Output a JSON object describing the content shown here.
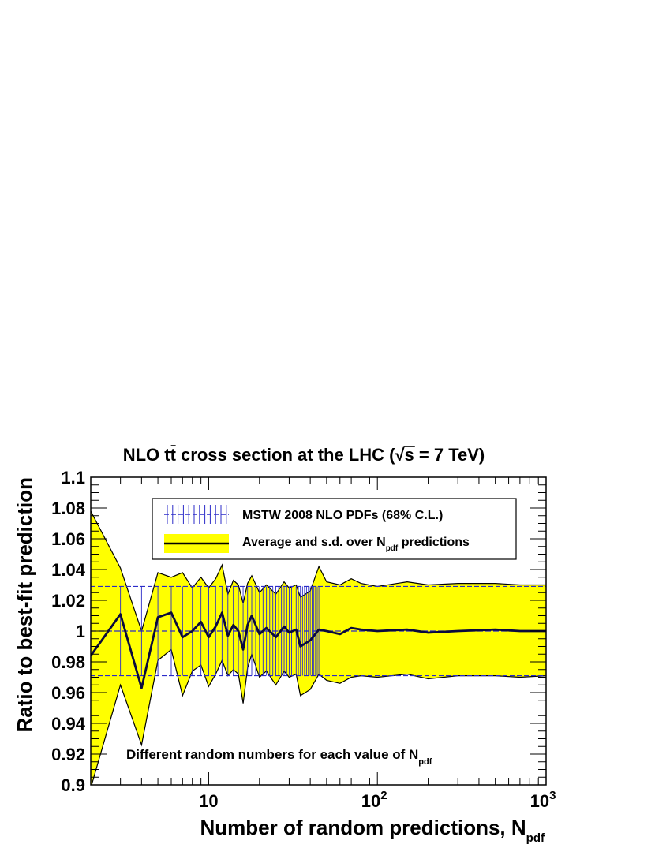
{
  "chart_data": {
    "type": "area",
    "title": "NLO tt̄ cross section at the LHC (√s = 7 TeV)",
    "title_parts": {
      "prefix": "NLO t",
      "tbar": "t",
      "mid": " cross section at the LHC (",
      "sqrt": "√",
      "s": "s",
      "suffix": " = 7 TeV)"
    },
    "xlabel": "Number of random predictions, N",
    "xlabel_sub": "pdf",
    "ylabel": "Ratio to best-fit prediction",
    "x_scale": "log",
    "xlim": [
      2,
      1000
    ],
    "ylim": [
      0.9,
      1.1
    ],
    "yticks": [
      "0.9",
      "0.92",
      "0.94",
      "0.96",
      "0.98",
      "1",
      "1.02",
      "1.04",
      "1.06",
      "1.08",
      "1.1"
    ],
    "xticks": [
      {
        "value": 10,
        "base": "10",
        "exp": ""
      },
      {
        "value": 100,
        "base": "10",
        "exp": "2"
      },
      {
        "value": 1000,
        "base": "10",
        "exp": "3"
      }
    ],
    "legend_position": "top-center",
    "legend": [
      {
        "label": "MSTW 2008 NLO PDFs (68% C.L.)",
        "style": "blue-dashed-error-bars"
      },
      {
        "label": "Average and s.d. over N",
        "sub": "pdf",
        "suffix": " predictions",
        "style": "yellow-band-black-line"
      }
    ],
    "annotation": {
      "text": "Different random numbers for each value of N",
      "sub": "pdf"
    },
    "colors": {
      "band_fill": "#ffff00",
      "band_edge": "#000000",
      "mean_line": "#0a0a3c",
      "reference": "#2b2bc8",
      "frame": "#000000"
    },
    "series": [
      {
        "name": "MSTW 2008 NLO PDFs (68% C.L.)",
        "kind": "reference-error-band",
        "central": 1.0,
        "lower": 0.971,
        "upper": 1.029
      },
      {
        "name": "Average and s.d. over Npdf predictions",
        "kind": "mean-with-sd-band",
        "x": [
          2,
          3,
          4,
          5,
          6,
          7,
          8,
          9,
          10,
          11,
          12,
          13,
          14,
          15,
          16,
          17,
          18,
          20,
          22,
          25,
          28,
          30,
          33,
          35,
          40,
          45,
          50,
          60,
          70,
          80,
          100,
          150,
          200,
          300,
          500,
          700,
          1000
        ],
        "mean": [
          0.984,
          1.011,
          0.963,
          1.009,
          1.012,
          0.996,
          1.0,
          1.006,
          0.996,
          1.003,
          1.012,
          0.997,
          1.004,
          1.0,
          0.988,
          1.004,
          1.01,
          0.998,
          1.002,
          0.996,
          1.003,
          0.999,
          1.001,
          0.99,
          0.994,
          1.001,
          1.0,
          0.998,
          1.002,
          1.001,
          1.0,
          1.001,
          0.999,
          1.0,
          1.001,
          1.0,
          1.0
        ],
        "upper": [
          1.078,
          1.041,
          1.0,
          1.038,
          1.035,
          1.038,
          1.028,
          1.035,
          1.028,
          1.034,
          1.043,
          1.024,
          1.033,
          1.03,
          1.018,
          1.031,
          1.036,
          1.025,
          1.03,
          1.024,
          1.032,
          1.028,
          1.03,
          1.022,
          1.026,
          1.042,
          1.032,
          1.03,
          1.034,
          1.031,
          1.029,
          1.032,
          1.03,
          1.031,
          1.031,
          1.03,
          1.03
        ],
        "lower": [
          0.898,
          0.965,
          0.926,
          0.981,
          0.988,
          0.958,
          0.974,
          0.978,
          0.964,
          0.972,
          0.981,
          0.971,
          0.975,
          0.972,
          0.953,
          0.976,
          0.985,
          0.97,
          0.974,
          0.965,
          0.974,
          0.97,
          0.972,
          0.958,
          0.962,
          0.972,
          0.968,
          0.966,
          0.97,
          0.971,
          0.97,
          0.972,
          0.969,
          0.971,
          0.971,
          0.97,
          0.971
        ]
      }
    ]
  }
}
